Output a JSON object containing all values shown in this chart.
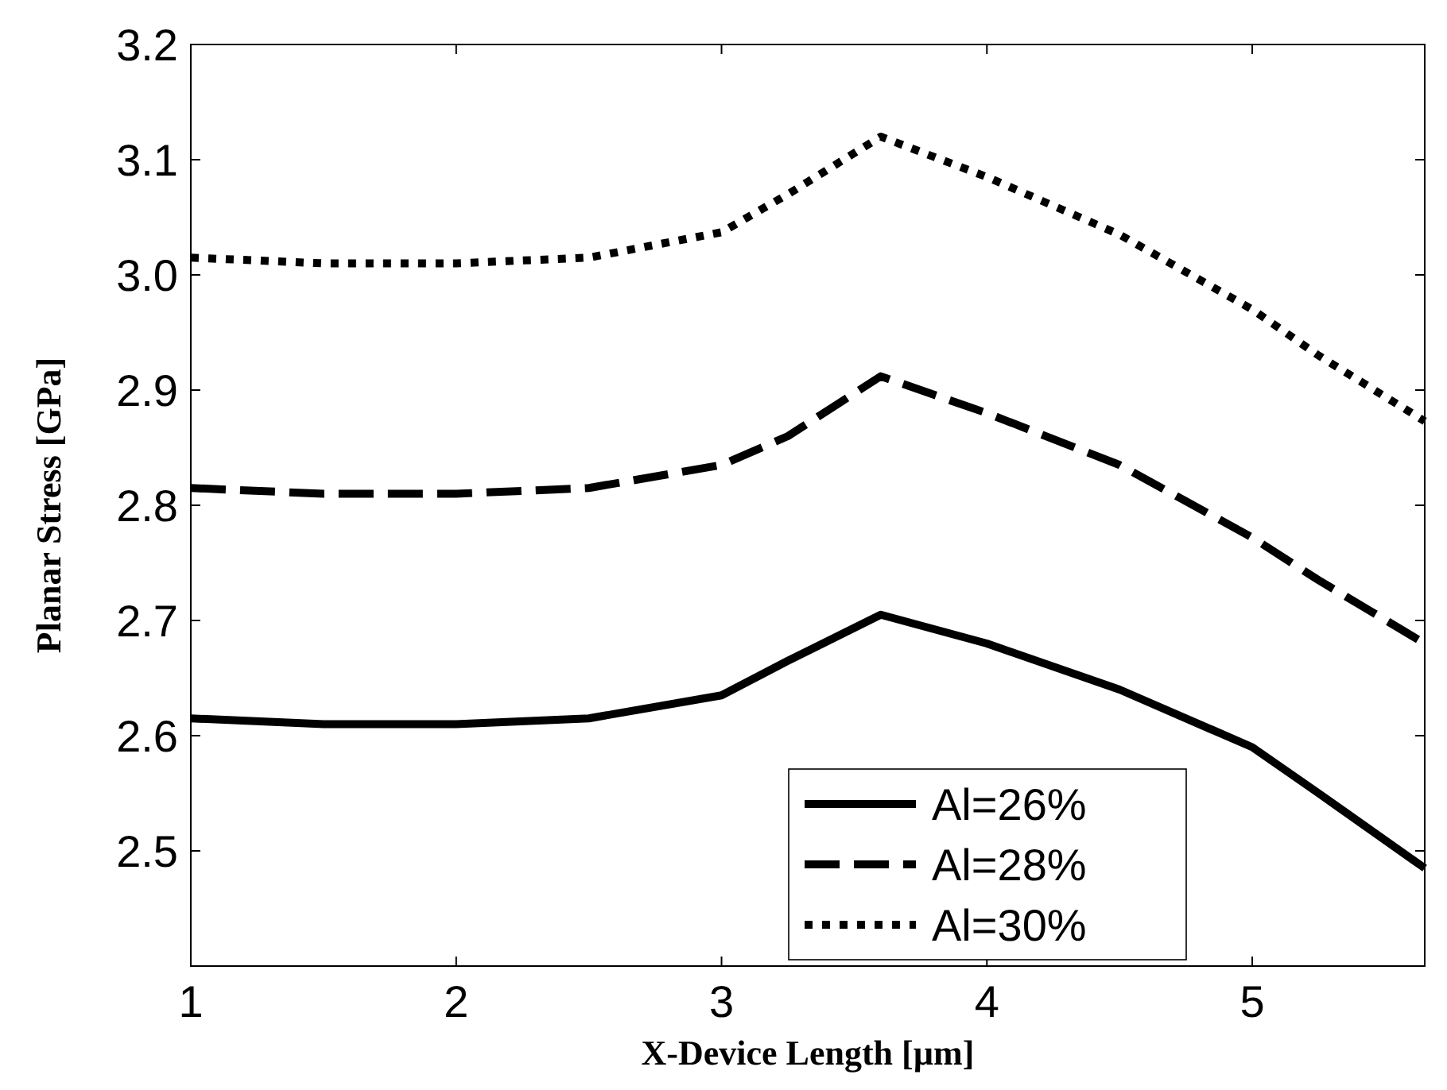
{
  "chart_data": {
    "type": "line",
    "xlabel": "X-Device Length [µm]",
    "ylabel": "Planar Stress [GPa]",
    "xlim": [
      1,
      5.65
    ],
    "xticks": [
      1,
      2,
      3,
      4,
      5
    ],
    "ylim": [
      2.4,
      3.2
    ],
    "yticks": [
      2.5,
      2.6,
      2.7,
      2.8,
      2.9,
      {
        "value": 3,
        "label": "3.0"
      },
      3.1,
      3.2
    ],
    "x": [
      1,
      1.5,
      2,
      2.5,
      3,
      3.25,
      3.6,
      4,
      4.5,
      5,
      5.25,
      5.65
    ],
    "legend": "bottom right",
    "grid": false,
    "series": [
      {
        "name": "Al=26%",
        "color": "#000000",
        "line_style": "solid",
        "values": [
          2.615,
          2.61,
          2.61,
          2.615,
          2.635,
          2.665,
          2.705,
          2.68,
          2.64,
          2.59,
          2.55,
          2.485
        ]
      },
      {
        "name": "Al=28%",
        "color": "#000000",
        "line_style": "dashed",
        "values": [
          2.815,
          2.81,
          2.81,
          2.815,
          2.835,
          2.86,
          2.912,
          2.88,
          2.835,
          2.772,
          2.735,
          2.68
        ]
      },
      {
        "name": "Al=30%",
        "color": "#000000",
        "line_style": "dotted",
        "values": [
          3.015,
          3.01,
          3.01,
          3.015,
          3.037,
          3.07,
          3.12,
          3.085,
          3.035,
          2.97,
          2.93,
          2.873
        ]
      }
    ]
  }
}
